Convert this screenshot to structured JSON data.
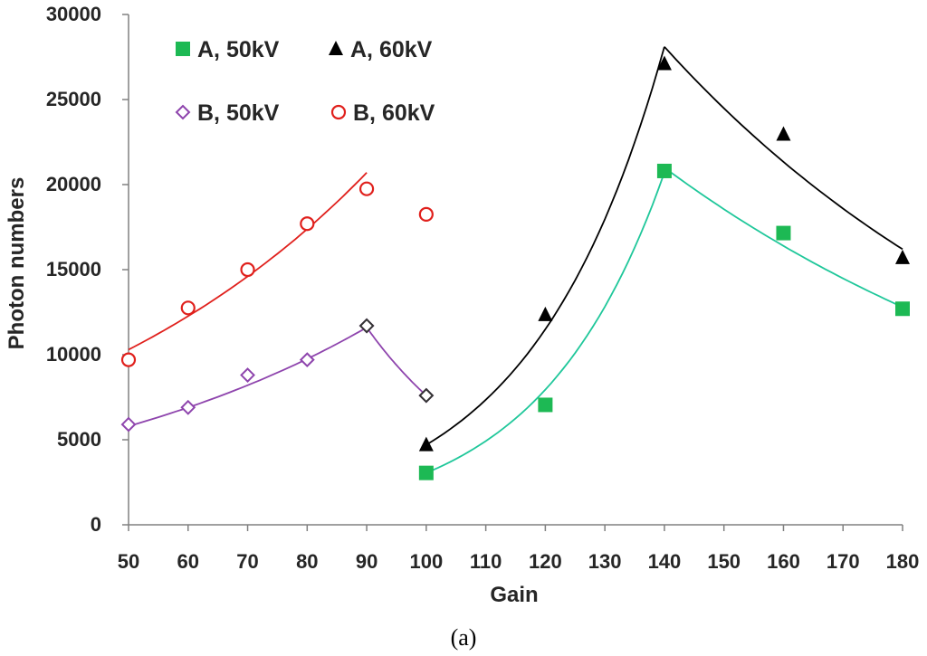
{
  "chart_data": {
    "type": "scatter",
    "title": "",
    "xlabel": "Gain",
    "ylabel": "Photon numbers",
    "xlim": [
      50,
      180
    ],
    "ylim": [
      0,
      30000
    ],
    "x_ticks": [
      "50",
      "60",
      "70",
      "80",
      "90",
      "100",
      "110",
      "120",
      "130",
      "140",
      "150",
      "160",
      "170",
      "180"
    ],
    "y_ticks": [
      "0",
      "5000",
      "10000",
      "15000",
      "20000",
      "25000",
      "30000"
    ],
    "grid": false,
    "legend_position": "top-left",
    "series": [
      {
        "name": "A, 50kV",
        "marker": "square-filled",
        "color": "#1db954",
        "line_color": "#1fc79a",
        "points": [
          [
            100,
            3050
          ],
          [
            120,
            7050
          ],
          [
            140,
            20800
          ],
          [
            160,
            17150
          ],
          [
            180,
            12700
          ]
        ],
        "fit": [
          [
            100,
            3050
          ],
          [
            140,
            20700
          ],
          [
            140,
            21000
          ],
          [
            180,
            12800
          ]
        ]
      },
      {
        "name": "A, 60kV",
        "marker": "triangle-filled",
        "color": "#000000",
        "line_color": "#000000",
        "points": [
          [
            100,
            4700
          ],
          [
            120,
            12350
          ],
          [
            140,
            27100
          ],
          [
            160,
            22950
          ],
          [
            180,
            15700
          ]
        ],
        "fit": [
          [
            100,
            4700
          ],
          [
            140,
            28100
          ],
          [
            180,
            16200
          ]
        ]
      },
      {
        "name": "B, 50kV",
        "marker": "diamond-open",
        "color": "#8e44ad",
        "line_color": "#8e44ad",
        "points": [
          [
            50,
            5900
          ],
          [
            60,
            6900
          ],
          [
            70,
            8800
          ],
          [
            80,
            9700
          ],
          [
            90,
            11700
          ],
          [
            100,
            7600
          ]
        ],
        "fit": [
          [
            50,
            5800
          ],
          [
            90,
            11600
          ],
          [
            100,
            7600
          ]
        ]
      },
      {
        "name": "B, 60kV",
        "marker": "circle-open",
        "color": "#e0201c",
        "line_color": "#e0201c",
        "points": [
          [
            50,
            9700
          ],
          [
            60,
            12750
          ],
          [
            70,
            15000
          ],
          [
            80,
            17700
          ],
          [
            90,
            19750
          ],
          [
            100,
            18250
          ]
        ],
        "fit": [
          [
            50,
            10300
          ],
          [
            90,
            20700
          ]
        ]
      }
    ]
  },
  "caption": "(a)"
}
